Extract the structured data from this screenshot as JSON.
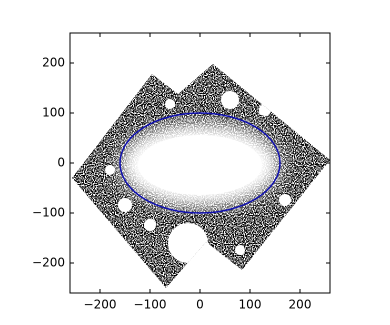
{
  "chart_data": {
    "type": "ellipse",
    "xlim": [
      -260,
      260
    ],
    "ylim": [
      -260,
      260
    ],
    "xticks": [
      {
        "value": -200,
        "label": "−200"
      },
      {
        "value": -100,
        "label": "−100"
      },
      0,
      100,
      200
    ],
    "yticks": [
      {
        "value": -200,
        "label": "−200"
      },
      {
        "value": -100,
        "label": "−100"
      },
      0,
      100,
      200
    ],
    "ellipse": {
      "center": [
        0,
        0
      ],
      "width": 320,
      "height": 200,
      "color": "#1010b0"
    }
  }
}
